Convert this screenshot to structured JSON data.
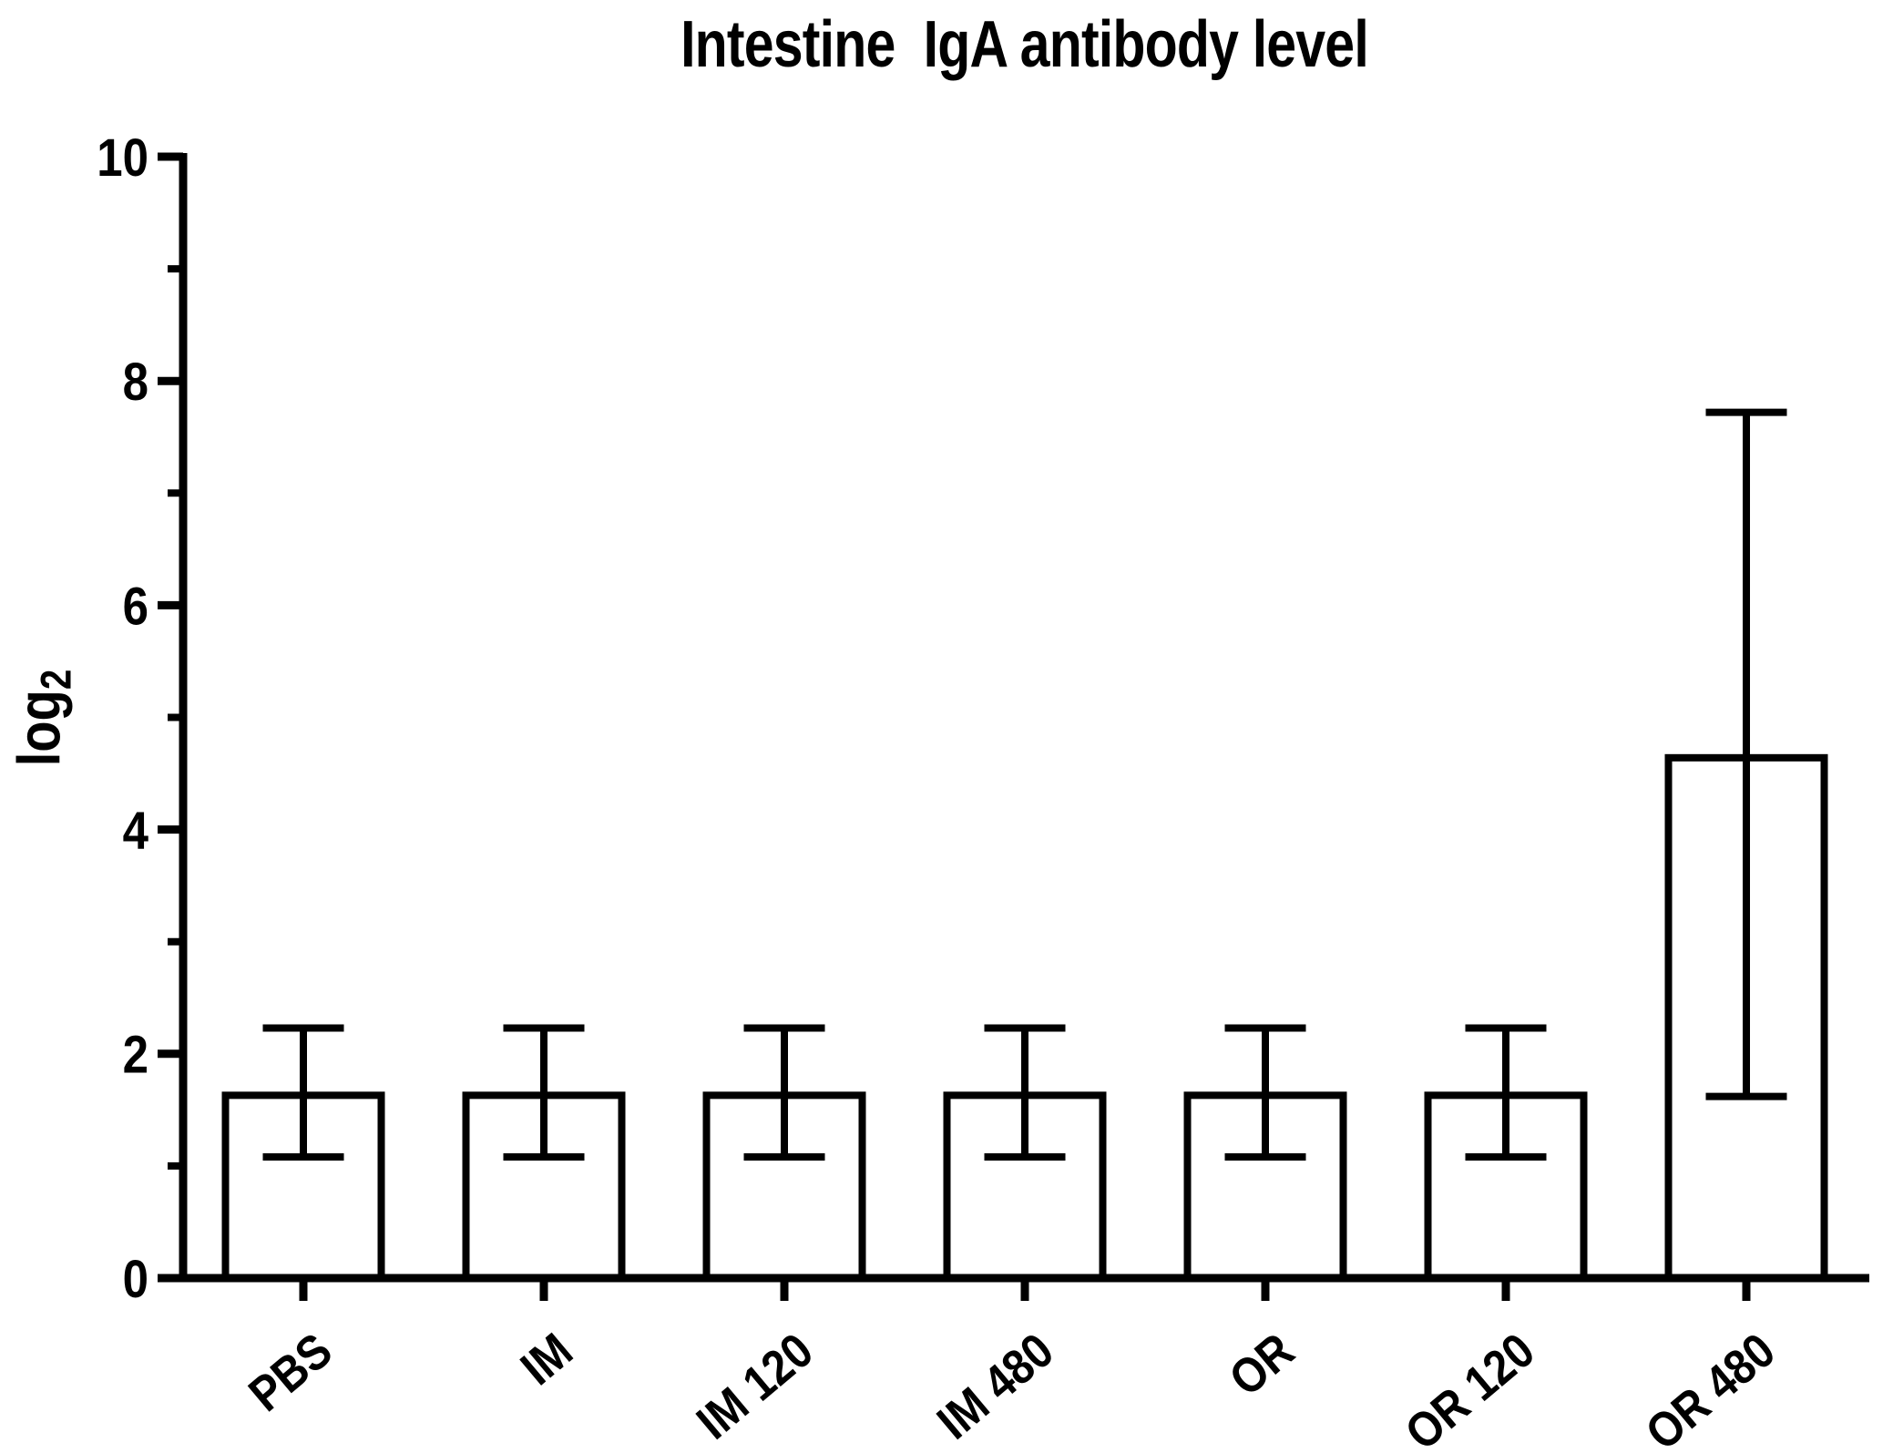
{
  "chart_data": {
    "type": "bar",
    "title": "Intestine  IgA antibody level",
    "ylabel_base": "log",
    "ylabel_sub": "2",
    "xlabel": "",
    "categories": [
      "PBS",
      "IM",
      "IM 120",
      "IM 480",
      "OR",
      "OR 120",
      "OR 480"
    ],
    "values": [
      1.63,
      1.63,
      1.63,
      1.63,
      1.63,
      1.63,
      4.64
    ],
    "error_low": [
      1.08,
      1.08,
      1.08,
      1.08,
      1.08,
      1.08,
      1.62
    ],
    "error_high": [
      2.23,
      2.23,
      2.23,
      2.23,
      2.23,
      2.23,
      7.72
    ],
    "ylim": [
      0,
      10
    ],
    "ytick_major": [
      0,
      2,
      4,
      6,
      8,
      10
    ],
    "ytick_labels": [
      "0",
      "2",
      "4",
      "6",
      "8",
      "10"
    ],
    "ytick_minor": [
      1,
      3,
      5,
      7,
      9
    ],
    "grid": false,
    "legend": "none",
    "bar_fill": "#ffffff",
    "bar_stroke": "#000000",
    "axis_color": "#000000",
    "background": "#ffffff"
  }
}
